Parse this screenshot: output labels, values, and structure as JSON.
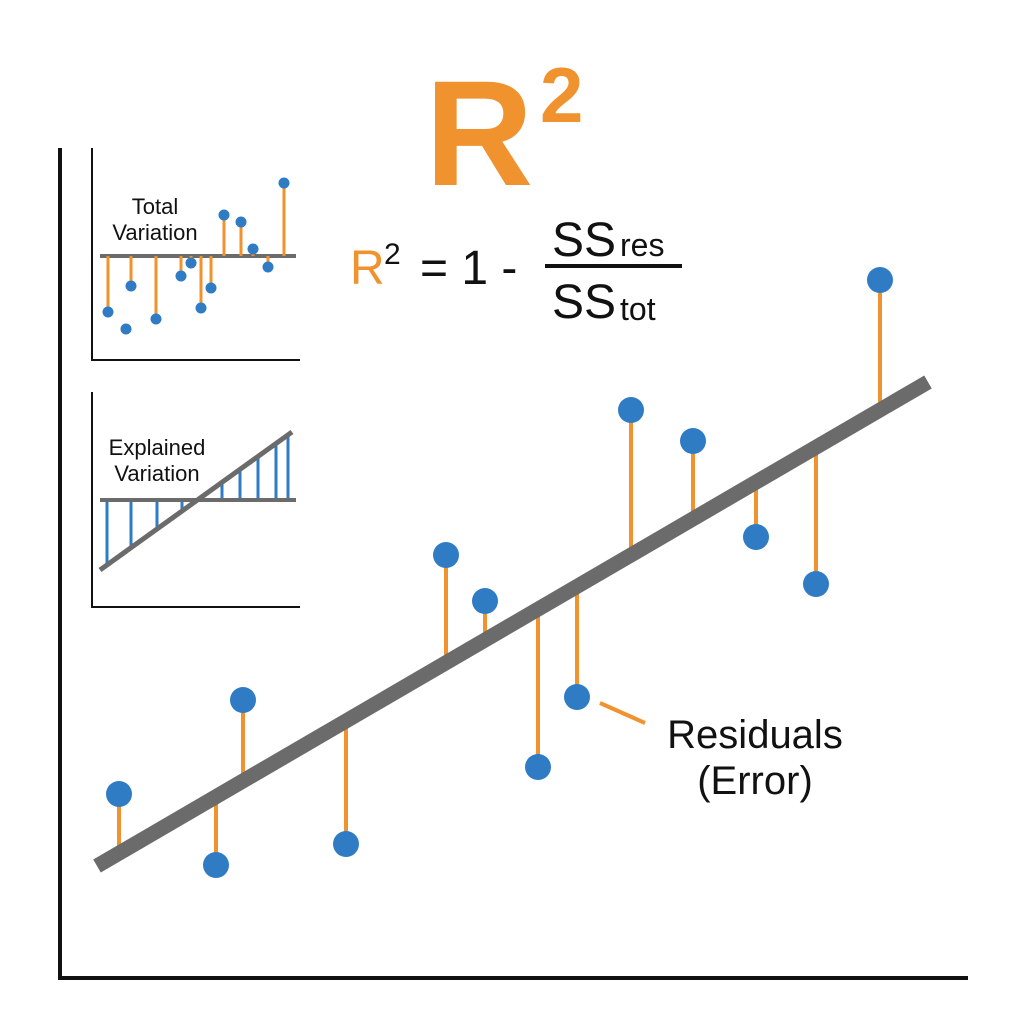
{
  "title": {
    "base": "R",
    "exponent": "2"
  },
  "formula": {
    "lhs_base": "R",
    "lhs_exponent": "2",
    "operator": "= 1 -",
    "numerator_base": "SS",
    "numerator_sub": "res",
    "denominator_base": "SS",
    "denominator_sub": "tot"
  },
  "insets": [
    {
      "label_lines": [
        "Total",
        "Variation"
      ]
    },
    {
      "label_lines": [
        "Explained",
        "Variation"
      ]
    }
  ],
  "annotation": {
    "lines": [
      "Residuals",
      "(Error)"
    ]
  }
}
